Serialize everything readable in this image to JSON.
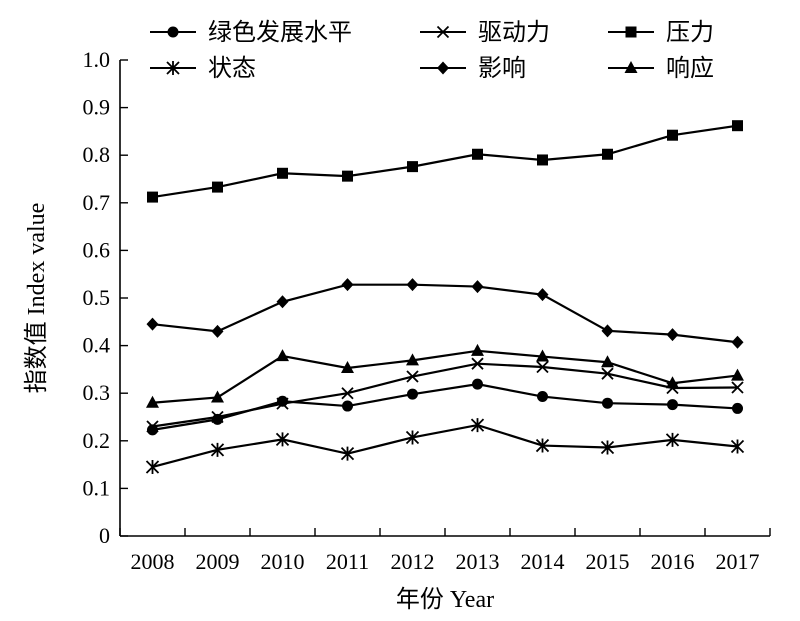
{
  "chart_data": {
    "type": "line",
    "title": "",
    "xlabel": "年份 Year",
    "ylabel": "指数值 Index value",
    "categories": [
      "2008",
      "2009",
      "2010",
      "2011",
      "2012",
      "2013",
      "2014",
      "2015",
      "2016",
      "2017"
    ],
    "ylim": [
      0,
      1.0
    ],
    "yticks": [
      "0",
      "0.1",
      "0.2",
      "0.3",
      "0.4",
      "0.5",
      "0.6",
      "0.7",
      "0.8",
      "0.9",
      "1.0"
    ],
    "grid": false,
    "legend_position": "top",
    "series": [
      {
        "name": "绿色发展水平",
        "marker": "circle",
        "values": [
          0.223,
          0.245,
          0.283,
          0.273,
          0.298,
          0.319,
          0.293,
          0.279,
          0.276,
          0.268
        ]
      },
      {
        "name": "驱动力",
        "marker": "x",
        "values": [
          0.23,
          0.25,
          0.278,
          0.3,
          0.335,
          0.362,
          0.355,
          0.341,
          0.311,
          0.312
        ]
      },
      {
        "name": "压力",
        "marker": "square",
        "values": [
          0.712,
          0.733,
          0.762,
          0.756,
          0.776,
          0.802,
          0.79,
          0.802,
          0.842,
          0.862
        ]
      },
      {
        "name": "状态",
        "marker": "asterisk",
        "values": [
          0.145,
          0.181,
          0.203,
          0.173,
          0.207,
          0.233,
          0.19,
          0.186,
          0.202,
          0.188
        ]
      },
      {
        "name": "影响",
        "marker": "diamond",
        "values": [
          0.445,
          0.43,
          0.492,
          0.528,
          0.528,
          0.524,
          0.507,
          0.431,
          0.423,
          0.407
        ]
      },
      {
        "name": "响应",
        "marker": "triangle",
        "values": [
          0.28,
          0.291,
          0.378,
          0.353,
          0.369,
          0.389,
          0.377,
          0.365,
          0.321,
          0.337
        ]
      }
    ]
  }
}
